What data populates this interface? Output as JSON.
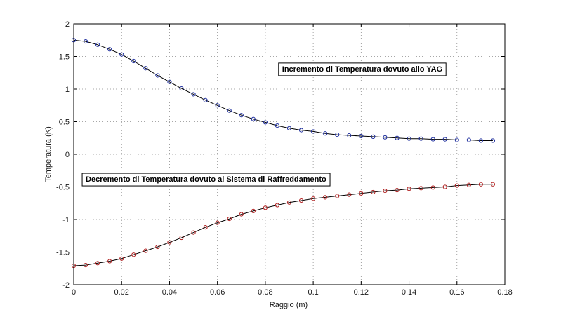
{
  "chart_data": {
    "type": "line",
    "xlabel": "Raggio (m)",
    "ylabel": "Temperatura (K)",
    "xlim": [
      0,
      0.18
    ],
    "ylim": [
      -2,
      2
    ],
    "x_ticks": [
      0,
      0.02,
      0.04,
      0.06,
      0.08,
      0.1,
      0.12,
      0.14,
      0.16,
      0.18
    ],
    "x_tick_labels": [
      "0",
      "0.02",
      "0.04",
      "0.06",
      "0.08",
      "0.1",
      "0.12",
      "0.14",
      "0.16",
      "0.18"
    ],
    "y_ticks": [
      -2,
      -1.5,
      -1,
      -0.5,
      0,
      0.5,
      1,
      1.5,
      2
    ],
    "y_tick_labels": [
      "-2",
      "-1.5",
      "-1",
      "-0.5",
      "0",
      "0.5",
      "1",
      "1.5",
      "2"
    ],
    "grid": true,
    "marker": "circle",
    "series": [
      {
        "color": "#1f2f9e",
        "x": [
          0,
          0.005,
          0.01,
          0.015,
          0.02,
          0.025,
          0.03,
          0.035,
          0.04,
          0.045,
          0.05,
          0.055,
          0.06,
          0.065,
          0.07,
          0.075,
          0.08,
          0.085,
          0.09,
          0.095,
          0.1,
          0.105,
          0.11,
          0.115,
          0.12,
          0.125,
          0.13,
          0.135,
          0.14,
          0.145,
          0.15,
          0.155,
          0.16,
          0.165,
          0.17,
          0.175
        ],
        "y": [
          1.75,
          1.73,
          1.68,
          1.61,
          1.53,
          1.43,
          1.32,
          1.21,
          1.11,
          1.01,
          0.92,
          0.83,
          0.75,
          0.67,
          0.6,
          0.54,
          0.49,
          0.44,
          0.4,
          0.37,
          0.35,
          0.32,
          0.3,
          0.29,
          0.28,
          0.27,
          0.26,
          0.25,
          0.24,
          0.24,
          0.23,
          0.23,
          0.22,
          0.22,
          0.21,
          0.21
        ]
      },
      {
        "color": "#b02020",
        "x": [
          0,
          0.005,
          0.01,
          0.015,
          0.02,
          0.025,
          0.03,
          0.035,
          0.04,
          0.045,
          0.05,
          0.055,
          0.06,
          0.065,
          0.07,
          0.075,
          0.08,
          0.085,
          0.09,
          0.095,
          0.1,
          0.105,
          0.11,
          0.115,
          0.12,
          0.125,
          0.13,
          0.135,
          0.14,
          0.145,
          0.15,
          0.155,
          0.16,
          0.165,
          0.17,
          0.175
        ],
        "y": [
          -1.71,
          -1.7,
          -1.67,
          -1.64,
          -1.6,
          -1.54,
          -1.48,
          -1.42,
          -1.35,
          -1.28,
          -1.2,
          -1.12,
          -1.05,
          -0.99,
          -0.92,
          -0.87,
          -0.82,
          -0.78,
          -0.74,
          -0.71,
          -0.68,
          -0.66,
          -0.64,
          -0.62,
          -0.6,
          -0.58,
          -0.56,
          -0.55,
          -0.53,
          -0.52,
          -0.51,
          -0.5,
          -0.48,
          -0.47,
          -0.46,
          -0.46
        ]
      }
    ],
    "annotations": [
      {
        "text": "Incremento di Temperatura dovuto allo YAG",
        "x": 0.087,
        "y": 1.27
      },
      {
        "text": "Decremento di Temperatura dovuto al Sistema di Raffreddamento",
        "x": 0.005,
        "y": -0.42
      }
    ]
  }
}
